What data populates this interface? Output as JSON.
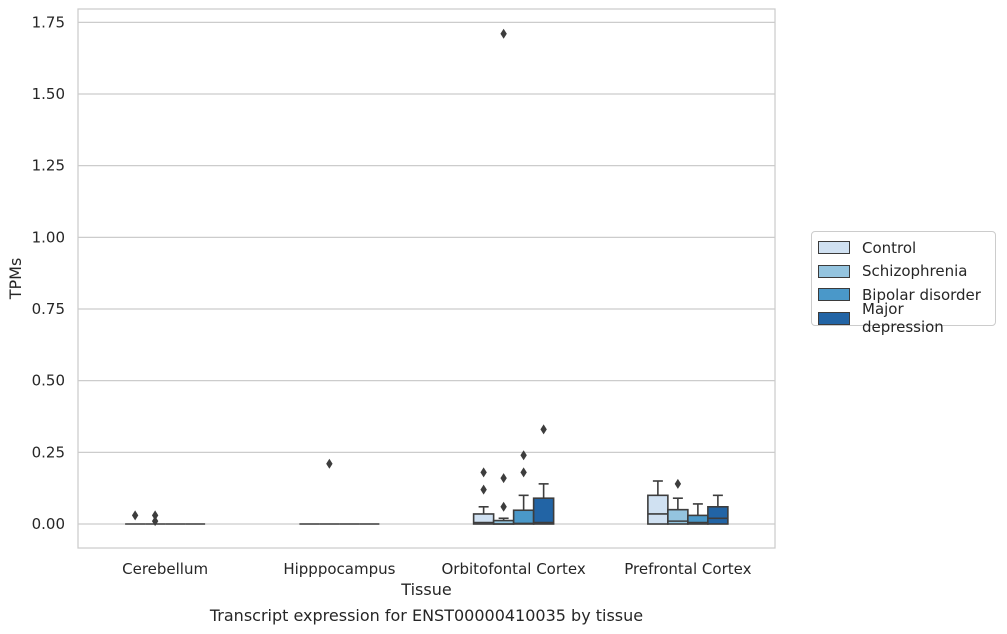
{
  "chart_data": {
    "type": "box",
    "caption": "Transcript expression for ENST00000410035 by tissue",
    "xlabel": "Tissue",
    "ylabel": "TPMs",
    "ylim": [
      -0.08,
      1.8
    ],
    "yticks": [
      "0.00",
      "0.25",
      "0.50",
      "0.75",
      "1.00",
      "1.25",
      "1.50",
      "1.75"
    ],
    "grid": true,
    "legend_position": "right",
    "categories": [
      "Cerebellum",
      "Hipppocampus",
      "Orbitofontal Cortex",
      "Prefrontal Cortex"
    ],
    "series": [
      {
        "name": "Control",
        "color": "#d0e1f2",
        "boxes": [
          {
            "q1": 0,
            "median": 0,
            "q3": 0,
            "whisker_low": 0,
            "whisker_high": 0,
            "outliers": [
              0.03
            ]
          },
          {
            "q1": 0,
            "median": 0,
            "q3": 0,
            "whisker_low": 0,
            "whisker_high": 0,
            "outliers": []
          },
          {
            "q1": 0,
            "median": 0.005,
            "q3": 0.035,
            "whisker_low": 0,
            "whisker_high": 0.06,
            "outliers": [
              0.12,
              0.18
            ]
          },
          {
            "q1": 0,
            "median": 0.035,
            "q3": 0.1,
            "whisker_low": 0,
            "whisker_high": 0.15,
            "outliers": []
          }
        ]
      },
      {
        "name": "Schizophrenia",
        "color": "#94c4df",
        "boxes": [
          {
            "q1": 0,
            "median": 0,
            "q3": 0,
            "whisker_low": 0,
            "whisker_high": 0,
            "outliers": [
              0.01,
              0.03
            ]
          },
          {
            "q1": 0,
            "median": 0,
            "q3": 0,
            "whisker_low": 0,
            "whisker_high": 0,
            "outliers": [
              0.21
            ]
          },
          {
            "q1": 0,
            "median": 0,
            "q3": 0.012,
            "whisker_low": 0,
            "whisker_high": 0.02,
            "outliers": [
              0.06,
              0.16,
              1.71
            ]
          },
          {
            "q1": 0,
            "median": 0.01,
            "q3": 0.05,
            "whisker_low": 0,
            "whisker_high": 0.09,
            "outliers": [
              0.14
            ]
          }
        ]
      },
      {
        "name": "Bipolar disorder",
        "color": "#4a98c9",
        "boxes": [
          {
            "q1": 0,
            "median": 0,
            "q3": 0,
            "whisker_low": 0,
            "whisker_high": 0,
            "outliers": []
          },
          {
            "q1": 0,
            "median": 0,
            "q3": 0,
            "whisker_low": 0,
            "whisker_high": 0,
            "outliers": []
          },
          {
            "q1": 0,
            "median": 0.002,
            "q3": 0.048,
            "whisker_low": 0,
            "whisker_high": 0.1,
            "outliers": [
              0.18,
              0.24
            ]
          },
          {
            "q1": 0,
            "median": 0.005,
            "q3": 0.03,
            "whisker_low": 0,
            "whisker_high": 0.07,
            "outliers": []
          }
        ]
      },
      {
        "name": "Major depression",
        "color": "#2264a5",
        "boxes": [
          {
            "q1": 0,
            "median": 0,
            "q3": 0,
            "whisker_low": 0,
            "whisker_high": 0,
            "outliers": []
          },
          {
            "q1": 0,
            "median": 0,
            "q3": 0,
            "whisker_low": 0,
            "whisker_high": 0,
            "outliers": []
          },
          {
            "q1": 0,
            "median": 0.005,
            "q3": 0.09,
            "whisker_low": 0,
            "whisker_high": 0.14,
            "outliers": [
              0.33
            ]
          },
          {
            "q1": 0,
            "median": 0.02,
            "q3": 0.06,
            "whisker_low": 0,
            "whisker_high": 0.1,
            "outliers": []
          }
        ]
      }
    ]
  }
}
